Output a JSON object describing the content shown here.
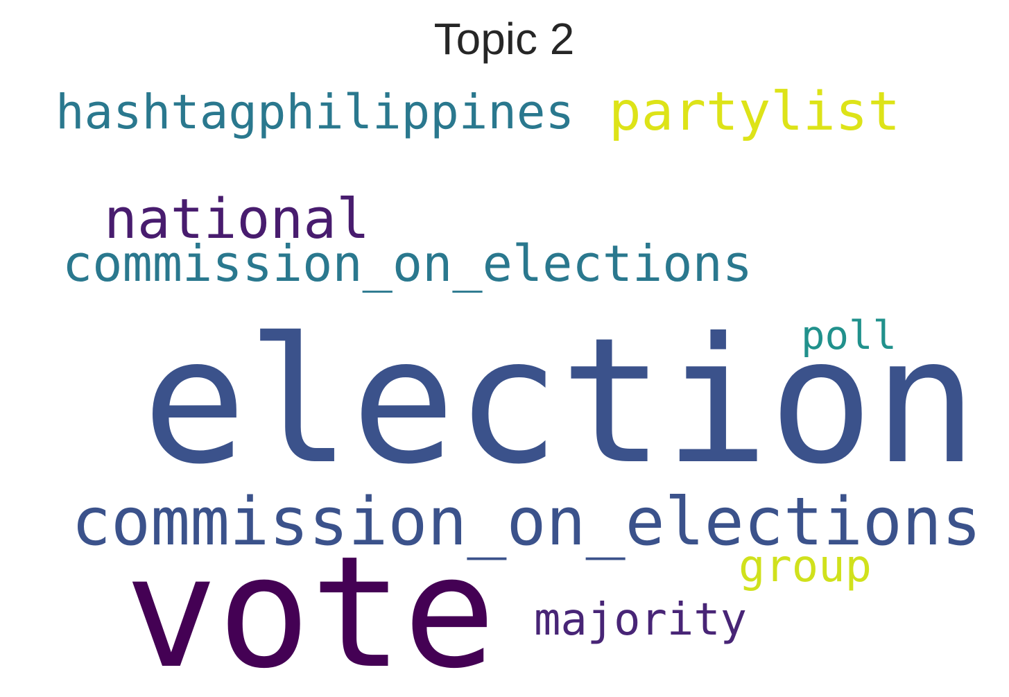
{
  "title": "Topic 2",
  "words": [
    {
      "text": "hashtagphilippines",
      "color": "#2a788e"
    },
    {
      "text": "partylist",
      "color": "#dde318"
    },
    {
      "text": "national",
      "color": "#481c6e"
    },
    {
      "text": "commission_on_elections",
      "color": "#2a788e"
    },
    {
      "text": "poll",
      "color": "#21918c"
    },
    {
      "text": "election",
      "color": "#3b528b"
    },
    {
      "text": "commission_on_elections",
      "color": "#3b528b"
    },
    {
      "text": "group",
      "color": "#d0e11c"
    },
    {
      "text": "vote",
      "color": "#440154"
    },
    {
      "text": "majority",
      "color": "#482576"
    }
  ]
}
